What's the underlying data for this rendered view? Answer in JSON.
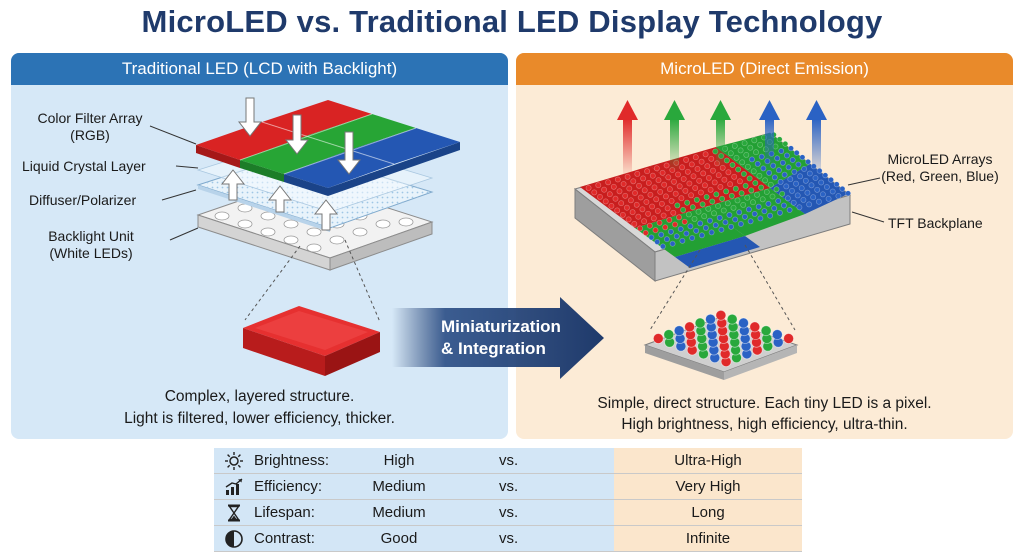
{
  "title": "MicroLED vs. Traditional LED Display Technology",
  "left_panel": {
    "header": "Traditional LED (LCD with Backlight)",
    "layers": {
      "color_filter_line1": "Color Filter Array",
      "color_filter_line2": "(RGB)",
      "liquid_crystal": "Liquid Crystal Layer",
      "diffuser": "Diffuser/Polarizer",
      "backlight_line1": "Backlight Unit",
      "backlight_line2": "(White LEDs)"
    },
    "caption_line1": "Complex, layered structure.",
    "caption_line2": "Light is filtered, lower efficiency, thicker."
  },
  "right_panel": {
    "header": "MicroLED (Direct Emission)",
    "labels": {
      "arrays_line1": "MicroLED Arrays",
      "arrays_line2": "(Red, Green, Blue)",
      "backplane": "TFT Backplane"
    },
    "caption_line1": "Simple, direct structure. Each tiny LED is a pixel.",
    "caption_line2": "High brightness, high efficiency, ultra-thin."
  },
  "transition_arrow": {
    "line1": "Miniaturization",
    "line2": "& Integration"
  },
  "comparison": {
    "vs_label": "vs.",
    "rows": [
      {
        "icon": "sun-icon",
        "metric": "Brightness:",
        "traditional": "High",
        "microled": "Ultra-High"
      },
      {
        "icon": "bar-chart-icon",
        "metric": "Efficiency:",
        "traditional": "Medium",
        "microled": "Very High"
      },
      {
        "icon": "hourglass-icon",
        "metric": "Lifespan:",
        "traditional": "Medium",
        "microled": "Long"
      },
      {
        "icon": "contrast-icon",
        "metric": "Contrast:",
        "traditional": "Good",
        "microled": "Infinite"
      }
    ]
  },
  "colors": {
    "title": "#1f3a6b",
    "left_header": "#2c73b5",
    "right_header": "#e98a2a",
    "red": "#e02a2a",
    "green": "#29a83c",
    "blue": "#2a62c4"
  }
}
